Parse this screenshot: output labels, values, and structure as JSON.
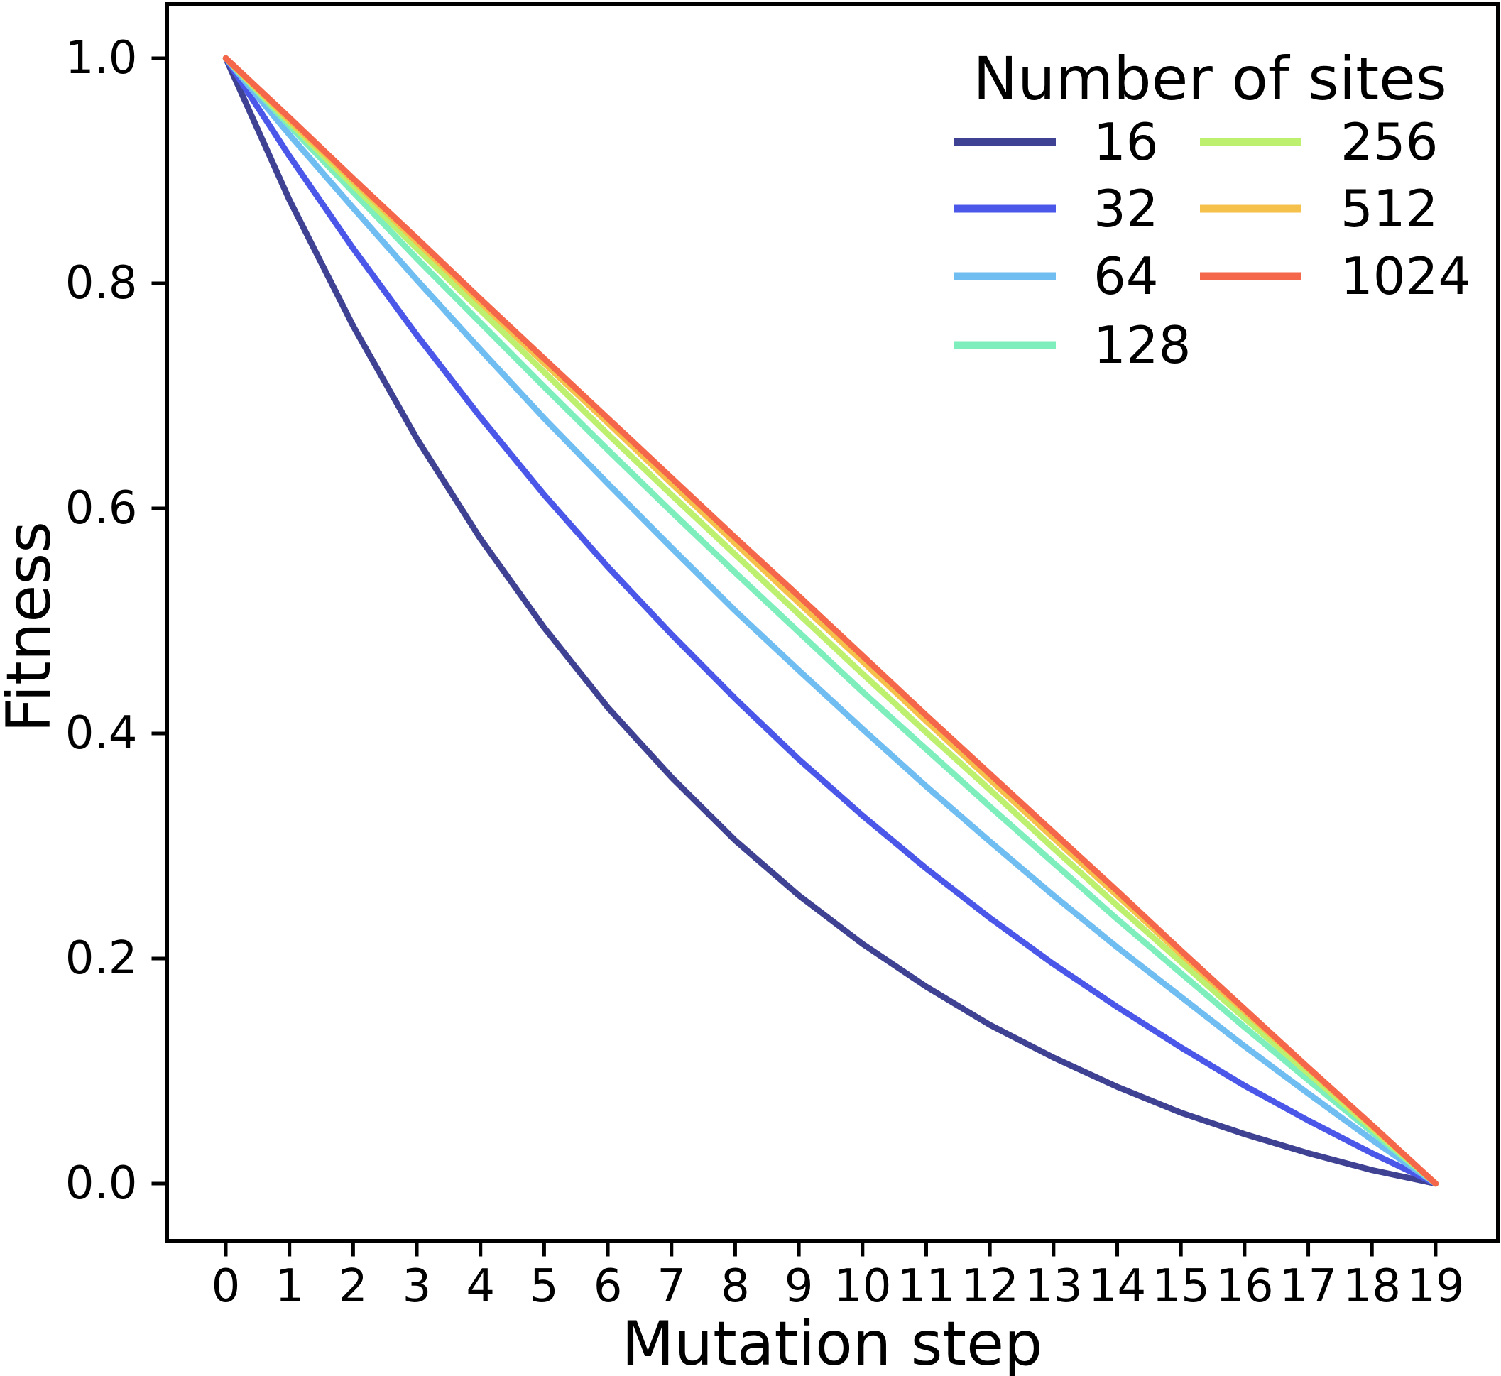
{
  "figure": {
    "background": "#ffffff",
    "text_color": "#000000",
    "spine_color": "#000000"
  },
  "chart_data": {
    "type": "line",
    "title": "",
    "xlabel": "Mutation step",
    "ylabel": "Fitness",
    "legend_title": "Number of sites",
    "legend_position": "upper right",
    "grid": false,
    "xlim": [
      -0.9,
      20.0
    ],
    "ylim": [
      -0.05,
      1.05
    ],
    "xticks": [
      0,
      1,
      2,
      3,
      4,
      5,
      6,
      7,
      8,
      9,
      10,
      11,
      12,
      13,
      14,
      15,
      16,
      17,
      18,
      19
    ],
    "xticklabels": [
      "0",
      "1",
      "2",
      "3",
      "4",
      "5",
      "6",
      "7",
      "8",
      "9",
      "10",
      "11",
      "12",
      "13",
      "14",
      "15",
      "16",
      "17",
      "18",
      "19"
    ],
    "yticks": [
      0.0,
      0.2,
      0.4,
      0.6,
      0.8,
      1.0
    ],
    "yticklabels": [
      "0.0",
      "0.2",
      "0.4",
      "0.6",
      "0.8",
      "1.0"
    ],
    "x": [
      0,
      1,
      2,
      3,
      4,
      5,
      6,
      7,
      8,
      9,
      10,
      11,
      12,
      13,
      14,
      15,
      16,
      17,
      18,
      19
    ],
    "series": [
      {
        "name": "16",
        "color": "#3f4293",
        "values": [
          1.0,
          0.874,
          0.762,
          0.662,
          0.573,
          0.494,
          0.423,
          0.361,
          0.305,
          0.256,
          0.213,
          0.175,
          0.141,
          0.112,
          0.086,
          0.063,
          0.044,
          0.027,
          0.012,
          0.0
        ]
      },
      {
        "name": "32",
        "color": "#4b57e8",
        "values": [
          1.0,
          0.913,
          0.831,
          0.754,
          0.681,
          0.612,
          0.548,
          0.488,
          0.431,
          0.377,
          0.327,
          0.28,
          0.236,
          0.195,
          0.157,
          0.121,
          0.087,
          0.056,
          0.027,
          0.0
        ]
      },
      {
        "name": "64",
        "color": "#70bdf2",
        "values": [
          1.0,
          0.932,
          0.867,
          0.803,
          0.741,
          0.68,
          0.622,
          0.565,
          0.509,
          0.456,
          0.404,
          0.353,
          0.304,
          0.256,
          0.21,
          0.166,
          0.122,
          0.08,
          0.039,
          0.0
        ]
      },
      {
        "name": "128",
        "color": "#7deebc",
        "values": [
          1.0,
          0.94,
          0.881,
          0.822,
          0.765,
          0.708,
          0.652,
          0.597,
          0.543,
          0.49,
          0.437,
          0.386,
          0.335,
          0.285,
          0.235,
          0.187,
          0.139,
          0.092,
          0.046,
          0.0
        ]
      },
      {
        "name": "256",
        "color": "#bdf06f",
        "values": [
          1.0,
          0.943,
          0.887,
          0.831,
          0.776,
          0.721,
          0.666,
          0.612,
          0.559,
          0.506,
          0.453,
          0.401,
          0.35,
          0.298,
          0.247,
          0.197,
          0.147,
          0.098,
          0.049,
          0.0
        ]
      },
      {
        "name": "512",
        "color": "#f6c14b",
        "values": [
          1.0,
          0.945,
          0.891,
          0.837,
          0.783,
          0.729,
          0.676,
          0.622,
          0.569,
          0.516,
          0.464,
          0.411,
          0.359,
          0.307,
          0.256,
          0.204,
          0.153,
          0.102,
          0.051,
          0.0
        ]
      },
      {
        "name": "1024",
        "color": "#f4674b",
        "values": [
          1.0,
          0.947,
          0.893,
          0.84,
          0.786,
          0.733,
          0.68,
          0.627,
          0.574,
          0.522,
          0.469,
          0.416,
          0.364,
          0.312,
          0.26,
          0.207,
          0.155,
          0.103,
          0.052,
          0.0
        ]
      }
    ]
  }
}
